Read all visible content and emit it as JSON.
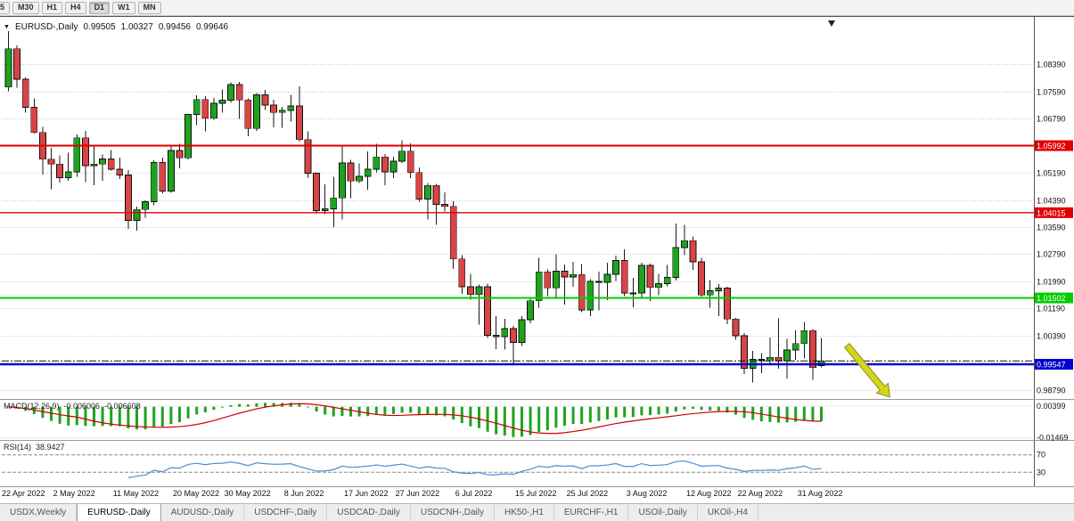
{
  "toolbar": {
    "timeframes": [
      "5",
      "M30",
      "H1",
      "H4",
      "D1",
      "W1",
      "MN"
    ],
    "active": "D1"
  },
  "chart": {
    "title": {
      "collapse_icon": "▼",
      "symbol_period": "EURUSD-,Daily",
      "open": "0.99505",
      "high": "1.00327",
      "low": "0.99456",
      "close": "0.99646"
    }
  },
  "price_axis": {
    "labels": [
      {
        "price": 1.0839,
        "text": "1.08390"
      },
      {
        "price": 1.0759,
        "text": "1.07590"
      },
      {
        "price": 1.0679,
        "text": "1.06790"
      },
      {
        "price": 1.0599,
        "text": ""
      },
      {
        "price": 1.0519,
        "text": "1.05190"
      },
      {
        "price": 1.0439,
        "text": "1.04390"
      },
      {
        "price": 1.0359,
        "text": "1.03590"
      },
      {
        "price": 1.0279,
        "text": "1.02790"
      },
      {
        "price": 1.0199,
        "text": "1.01990"
      },
      {
        "price": 1.0119,
        "text": "1.01190"
      },
      {
        "price": 1.0039,
        "text": "1.00390"
      },
      {
        "price": 0.9959,
        "text": ""
      },
      {
        "price": 0.9879,
        "text": "0.98790"
      }
    ]
  },
  "indicators": {
    "macd": {
      "label": "MACD(12,26,9)",
      "value_main": "-0.006006",
      "value_signal": "-0.006608",
      "axis_top": "0.00399",
      "axis_bottom": "-0.01469",
      "fast": 12,
      "slow": 26,
      "signal": 9
    },
    "rsi": {
      "label": "RSI(14)",
      "value": "38.9427",
      "period": 14,
      "level_top": "70",
      "level_bottom": "30"
    }
  },
  "time_axis": {
    "labels": [
      {
        "index": 0,
        "text": "22 Apr 2022"
      },
      {
        "index": 6,
        "text": "2 May 2022"
      },
      {
        "index": 13,
        "text": "11 May 2022"
      },
      {
        "index": 20,
        "text": "20 May 2022"
      },
      {
        "index": 26,
        "text": "30 May 2022"
      },
      {
        "index": 33,
        "text": "8 Jun 2022"
      },
      {
        "index": 40,
        "text": "17 Jun 2022"
      },
      {
        "index": 46,
        "text": "27 Jun 2022"
      },
      {
        "index": 53,
        "text": "6 Jul 2022"
      },
      {
        "index": 60,
        "text": "15 Jul 2022"
      },
      {
        "index": 66,
        "text": "25 Jul 2022"
      },
      {
        "index": 73,
        "text": "3 Aug 2022"
      },
      {
        "index": 80,
        "text": "12 Aug 2022"
      },
      {
        "index": 86,
        "text": "22 Aug 2022"
      },
      {
        "index": 93,
        "text": "31 Aug 2022"
      }
    ]
  },
  "tabs": [
    {
      "label": "USDX,Weekly",
      "active": false
    },
    {
      "label": "EURUSD-,Daily",
      "active": true
    },
    {
      "label": "AUDUSD-,Daily",
      "active": false
    },
    {
      "label": "USDCHF-,Daily",
      "active": false
    },
    {
      "label": "USDCAD-,Daily",
      "active": false
    },
    {
      "label": "USDCNH-,Daily",
      "active": false
    },
    {
      "label": "HK50-,H1",
      "active": false
    },
    {
      "label": "EURCHF-,H1",
      "active": false
    },
    {
      "label": "USOil-,Daily",
      "active": false
    },
    {
      "label": "UKOil-,H4",
      "active": false
    }
  ],
  "colors": {
    "up": "#1fa31f",
    "down": "#d94444",
    "wick": "#1a1a1a",
    "grid": "#c4c4c4",
    "resistance": "#e00000",
    "support_green": "#00cc00",
    "support_blue": "#0000cc",
    "macd_hist": "#1fa31f",
    "macd_signal": "#d00000",
    "rsi_line": "#4c8ed6",
    "arrow": "#d2d41e"
  },
  "chart_data": {
    "type": "candlestick",
    "symbol": "EURUSD-",
    "timeframe": "Daily",
    "ylim": [
      0.9855,
      1.0976
    ],
    "ohlc": [
      [
        1.0772,
        1.0936,
        1.076,
        1.0885
      ],
      [
        1.0885,
        1.0895,
        1.077,
        1.0795
      ],
      [
        1.0795,
        1.08,
        1.0697,
        1.0712
      ],
      [
        1.0712,
        1.0738,
        1.0635,
        1.0638
      ],
      [
        1.0638,
        1.0655,
        1.0514,
        1.0559
      ],
      [
        1.0559,
        1.0593,
        1.047,
        1.0545
      ],
      [
        1.0545,
        1.057,
        1.049,
        1.0505
      ],
      [
        1.0505,
        1.0578,
        1.0495,
        1.0522
      ],
      [
        1.0522,
        1.0632,
        1.0508,
        1.0622
      ],
      [
        1.0622,
        1.0642,
        1.0492,
        1.054
      ],
      [
        1.054,
        1.0599,
        1.0483,
        1.0545
      ],
      [
        1.0545,
        1.0573,
        1.0495,
        1.056
      ],
      [
        1.056,
        1.0586,
        1.0526,
        1.053
      ],
      [
        1.053,
        1.0564,
        1.0501,
        1.0513
      ],
      [
        1.0513,
        1.0527,
        1.0354,
        1.0379
      ],
      [
        1.0379,
        1.042,
        1.0348,
        1.0411
      ],
      [
        1.0411,
        1.0438,
        1.0387,
        1.0434
      ],
      [
        1.0434,
        1.0556,
        1.0423,
        1.0549
      ],
      [
        1.0549,
        1.0564,
        1.0459,
        1.0465
      ],
      [
        1.0465,
        1.0599,
        1.046,
        1.0585
      ],
      [
        1.0585,
        1.0605,
        1.0532,
        1.0563
      ],
      [
        1.0563,
        1.0693,
        1.0558,
        1.0691
      ],
      [
        1.0691,
        1.0748,
        1.066,
        1.0735
      ],
      [
        1.0735,
        1.0745,
        1.0641,
        1.068
      ],
      [
        1.068,
        1.074,
        1.0676,
        1.0724
      ],
      [
        1.0724,
        1.0765,
        1.0697,
        1.0733
      ],
      [
        1.0733,
        1.0786,
        1.0725,
        1.0779
      ],
      [
        1.0779,
        1.0787,
        1.0678,
        1.0734
      ],
      [
        1.0734,
        1.0739,
        1.0627,
        1.065
      ],
      [
        1.065,
        1.0754,
        1.0642,
        1.0749
      ],
      [
        1.0749,
        1.0764,
        1.0704,
        1.0719
      ],
      [
        1.0719,
        1.0734,
        1.0653,
        1.0697
      ],
      [
        1.0697,
        1.0714,
        1.0652,
        1.0703
      ],
      [
        1.0703,
        1.0749,
        1.067,
        1.0716
      ],
      [
        1.0716,
        1.0774,
        1.0611,
        1.0617
      ],
      [
        1.0617,
        1.0641,
        1.0505,
        1.0518
      ],
      [
        1.0518,
        1.0521,
        1.0399,
        1.0408
      ],
      [
        1.0408,
        1.0485,
        1.0397,
        1.0413
      ],
      [
        1.0413,
        1.0507,
        1.0359,
        1.0445
      ],
      [
        1.0445,
        1.0601,
        1.0381,
        1.0548
      ],
      [
        1.0548,
        1.0557,
        1.0444,
        1.0495
      ],
      [
        1.0495,
        1.0547,
        1.0489,
        1.0509
      ],
      [
        1.0509,
        1.0582,
        1.0469,
        1.053
      ],
      [
        1.053,
        1.0605,
        1.052,
        1.0566
      ],
      [
        1.0566,
        1.0574,
        1.0483,
        1.0522
      ],
      [
        1.0522,
        1.0567,
        1.0503,
        1.0553
      ],
      [
        1.0553,
        1.0615,
        1.0548,
        1.0583
      ],
      [
        1.0583,
        1.0606,
        1.0503,
        1.052
      ],
      [
        1.052,
        1.0535,
        1.0434,
        1.0442
      ],
      [
        1.0442,
        1.0489,
        1.0381,
        1.0482
      ],
      [
        1.0482,
        1.0486,
        1.0365,
        1.0426
      ],
      [
        1.0426,
        1.0462,
        1.0405,
        1.042
      ],
      [
        1.042,
        1.0435,
        1.0236,
        1.0265
      ],
      [
        1.0265,
        1.0276,
        1.0162,
        1.0183
      ],
      [
        1.0183,
        1.0221,
        1.0145,
        1.016
      ],
      [
        1.016,
        1.019,
        1.0071,
        1.0183
      ],
      [
        1.0183,
        1.0193,
        1.0032,
        1.004
      ],
      [
        1.004,
        1.0096,
        0.9999,
        1.0036
      ],
      [
        1.0036,
        1.0088,
        0.9998,
        1.006
      ],
      [
        1.006,
        1.0067,
        0.9952,
        1.0019
      ],
      [
        1.0019,
        1.0097,
        1.0008,
        1.0086
      ],
      [
        1.0086,
        1.015,
        1.0075,
        1.0142
      ],
      [
        1.0142,
        1.0269,
        1.0122,
        1.0227
      ],
      [
        1.0227,
        1.0235,
        1.0155,
        1.018
      ],
      [
        1.018,
        1.0279,
        1.0152,
        1.0229
      ],
      [
        1.0229,
        1.0249,
        1.0131,
        1.0212
      ],
      [
        1.0212,
        1.0257,
        1.0183,
        1.0219
      ],
      [
        1.0219,
        1.025,
        1.0108,
        1.0115
      ],
      [
        1.0115,
        1.0205,
        1.0097,
        1.0199
      ],
      [
        1.0199,
        1.0228,
        1.0113,
        1.0196
      ],
      [
        1.0196,
        1.0254,
        1.0144,
        1.022
      ],
      [
        1.022,
        1.0275,
        1.02,
        1.0261
      ],
      [
        1.0261,
        1.0294,
        1.0155,
        1.0165
      ],
      [
        1.0165,
        1.021,
        1.0123,
        1.0165
      ],
      [
        1.0165,
        1.0254,
        1.0152,
        1.0246
      ],
      [
        1.0246,
        1.0252,
        1.0141,
        1.0181
      ],
      [
        1.0181,
        1.0221,
        1.0158,
        1.0192
      ],
      [
        1.0192,
        1.0247,
        1.0185,
        1.0211
      ],
      [
        1.0211,
        1.0369,
        1.0202,
        1.0299
      ],
      [
        1.0299,
        1.0365,
        1.0276,
        1.0319
      ],
      [
        1.0319,
        1.0331,
        1.0233,
        1.0257
      ],
      [
        1.0257,
        1.0268,
        1.0154,
        1.0159
      ],
      [
        1.0159,
        1.0203,
        1.0121,
        1.0171
      ],
      [
        1.0171,
        1.0191,
        1.0096,
        1.0179
      ],
      [
        1.0179,
        1.0183,
        1.0073,
        1.0088
      ],
      [
        1.0088,
        1.0091,
        1.0027,
        1.0039
      ],
      [
        1.0039,
        1.0046,
        0.9926,
        0.9943
      ],
      [
        0.9943,
        0.9994,
        0.9901,
        0.9969
      ],
      [
        0.9969,
        0.9987,
        0.9929,
        0.9967
      ],
      [
        0.9967,
        1.0033,
        0.9957,
        0.9975
      ],
      [
        0.9975,
        1.009,
        0.9941,
        0.9965
      ],
      [
        0.9965,
        1.0029,
        0.9913,
        0.9997
      ],
      [
        0.9997,
        1.0055,
        0.9968,
        1.0016
      ],
      [
        1.0016,
        1.0079,
        0.9972,
        1.0054
      ],
      [
        1.0054,
        1.0058,
        0.9909,
        0.9945
      ],
      [
        0.99505,
        1.00327,
        0.99456,
        0.99646
      ]
    ],
    "hlines": [
      {
        "price": 1.05992,
        "label": "1.05992",
        "color": "#e00000",
        "width": 2
      },
      {
        "price": 1.04015,
        "label": "1.04015",
        "color": "#e00000",
        "width": 1.3
      },
      {
        "price": 1.01502,
        "label": "1.01502",
        "color": "#00cc00",
        "width": 2
      },
      {
        "price": 0.99547,
        "label": "0.99547",
        "color": "#0000cc",
        "width": 2.4
      }
    ],
    "current_price_line": {
      "price": 0.99646,
      "style": "dash-dot"
    },
    "annotations": [
      {
        "type": "arrow",
        "from": {
          "index": 98,
          "price": 1.001
        },
        "to": {
          "index": 103,
          "price": 0.9858
        },
        "color": "#d2d41e"
      }
    ]
  }
}
